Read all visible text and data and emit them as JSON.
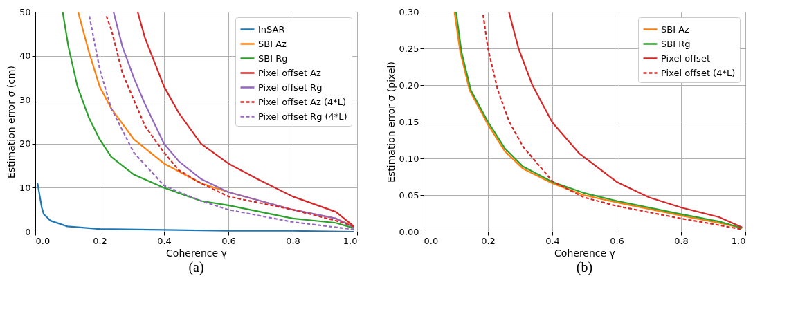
{
  "chart_data": [
    {
      "type": "line",
      "xlabel": "Coherence γ",
      "ylabel": "Estimation error σ (cm)",
      "annotations": [
        "(a)"
      ],
      "grid": true,
      "legend": "top right",
      "xlim": [
        0,
        1
      ],
      "ylim": [
        0,
        50
      ],
      "xticks": [
        {
          "value": 0,
          "label": "0.0"
        },
        {
          "value": 0.2,
          "label": "0.2"
        },
        {
          "value": 0.4,
          "label": "0.4"
        },
        {
          "value": 0.6,
          "label": "0.6"
        },
        {
          "value": 0.8,
          "label": "0.8"
        },
        {
          "value": 1,
          "label": "1.0"
        }
      ],
      "yticks": [
        0,
        10,
        20,
        30,
        40,
        50
      ],
      "series": [
        {
          "name": "InSAR",
          "color": "#1f77b4",
          "line_style": "solid",
          "x": [
            0.007,
            0.02,
            0.026,
            0.047,
            0.1,
            0.2,
            0.4,
            0.6,
            0.8,
            0.99
          ],
          "values": [
            11,
            5.5,
            4,
            2.5,
            1.2,
            0.6,
            0.4,
            0.2,
            0.2,
            0
          ]
        },
        {
          "name": "SBI Az",
          "color": "#ff7f0e",
          "line_style": "solid",
          "x": [
            0.133,
            0.166,
            0.2,
            0.236,
            0.306,
            0.4,
            0.515,
            0.6,
            0.8,
            0.934,
            0.99
          ],
          "values": [
            50,
            41,
            33,
            28,
            21,
            15.5,
            11,
            9,
            5,
            3,
            1.2
          ]
        },
        {
          "name": "SBI Rg",
          "color": "#2ca02c",
          "line_style": "solid",
          "x": [
            0.085,
            0.103,
            0.131,
            0.166,
            0.2,
            0.236,
            0.306,
            0.4,
            0.515,
            0.6,
            0.8,
            0.934,
            0.99
          ],
          "values": [
            50,
            42,
            33,
            26,
            21,
            17,
            13,
            10,
            7,
            6,
            3,
            2,
            0.8
          ]
        },
        {
          "name": "Pixel offset Az",
          "color": "#d62728",
          "line_style": "solid",
          "x": [
            0.318,
            0.341,
            0.4,
            0.446,
            0.515,
            0.6,
            0.69,
            0.8,
            0.934,
            0.99
          ],
          "values": [
            50,
            44,
            33,
            27,
            20,
            15.5,
            12,
            8,
            4.5,
            1.2
          ]
        },
        {
          "name": "Pixel offset Rg",
          "color": "#9467bd",
          "line_style": "solid",
          "x": [
            0.243,
            0.271,
            0.306,
            0.341,
            0.4,
            0.446,
            0.515,
            0.6,
            0.8,
            0.934,
            0.99
          ],
          "values": [
            50,
            42,
            35,
            29,
            20,
            16,
            12,
            9,
            5,
            3,
            1
          ]
        },
        {
          "name": "Pixel offset Az (4*L)",
          "color": "#d62728",
          "line_style": "dashed",
          "x": [
            0.221,
            0.236,
            0.271,
            0.306,
            0.341,
            0.4,
            0.446,
            0.515,
            0.6,
            0.8,
            0.934,
            0.99
          ],
          "values": [
            49,
            46,
            36,
            30,
            24,
            18,
            14,
            11,
            8,
            5,
            2.5,
            1.2
          ]
        },
        {
          "name": "Pixel offset Rg (4*L)",
          "color": "#9467bd",
          "line_style": "dashed",
          "x": [
            0.168,
            0.2,
            0.236,
            0.306,
            0.4,
            0.515,
            0.6,
            0.8,
            0.934,
            0.99
          ],
          "values": [
            49,
            37,
            28,
            18,
            10.5,
            7,
            5,
            2.2,
            1,
            0.5
          ]
        }
      ]
    },
    {
      "type": "line",
      "xlabel": "Coherence γ",
      "ylabel": "Estimation error σ (pixel)",
      "annotations": [
        "(b)"
      ],
      "grid": true,
      "legend": "top right",
      "xlim": [
        0,
        1
      ],
      "ylim": [
        0,
        0.3
      ],
      "xticks": [
        {
          "value": 0,
          "label": "0.0"
        },
        {
          "value": 0.2,
          "label": "0.2"
        },
        {
          "value": 0.4,
          "label": "0.4"
        },
        {
          "value": 0.6,
          "label": "0.6"
        },
        {
          "value": 0.8,
          "label": "0.8"
        },
        {
          "value": 1,
          "label": "1.0"
        }
      ],
      "yticks": [
        {
          "value": 0,
          "label": "0.00"
        },
        {
          "value": 0.05,
          "label": "0.05"
        },
        {
          "value": 0.1,
          "label": "0.10"
        },
        {
          "value": 0.15,
          "label": "0.15"
        },
        {
          "value": 0.2,
          "label": "0.20"
        },
        {
          "value": 0.25,
          "label": "0.25"
        },
        {
          "value": 0.3,
          "label": "0.30"
        }
      ],
      "series": [
        {
          "name": "SBI Az",
          "color": "#ff7f0e",
          "line_style": "solid",
          "x": [
            0.096,
            0.114,
            0.143,
            0.2,
            0.252,
            0.309,
            0.4,
            0.497,
            0.6,
            0.8,
            0.917,
            0.99
          ],
          "values": [
            0.3,
            0.245,
            0.193,
            0.146,
            0.11,
            0.086,
            0.066,
            0.05,
            0.04,
            0.022,
            0.012,
            0.005
          ]
        },
        {
          "name": "SBI Rg",
          "color": "#2ca02c",
          "line_style": "solid",
          "x": [
            0.101,
            0.118,
            0.147,
            0.2,
            0.252,
            0.309,
            0.4,
            0.497,
            0.6,
            0.8,
            0.917,
            0.99
          ],
          "values": [
            0.3,
            0.245,
            0.193,
            0.15,
            0.114,
            0.089,
            0.068,
            0.053,
            0.042,
            0.024,
            0.014,
            0.005
          ]
        },
        {
          "name": "Pixel offset",
          "color": "#d62728",
          "line_style": "solid",
          "x": [
            0.265,
            0.295,
            0.338,
            0.4,
            0.483,
            0.6,
            0.7,
            0.8,
            0.917,
            0.99
          ],
          "values": [
            0.3,
            0.25,
            0.2,
            0.149,
            0.107,
            0.068,
            0.047,
            0.033,
            0.02,
            0.006
          ]
        },
        {
          "name": "Pixel offset (4*L)",
          "color": "#d62728",
          "line_style": "dashed",
          "x": [
            0.185,
            0.2,
            0.23,
            0.266,
            0.309,
            0.4,
            0.497,
            0.6,
            0.8,
            0.917,
            0.99
          ],
          "values": [
            0.296,
            0.25,
            0.194,
            0.15,
            0.116,
            0.069,
            0.047,
            0.035,
            0.018,
            0.009,
            0.003
          ]
        }
      ]
    }
  ]
}
